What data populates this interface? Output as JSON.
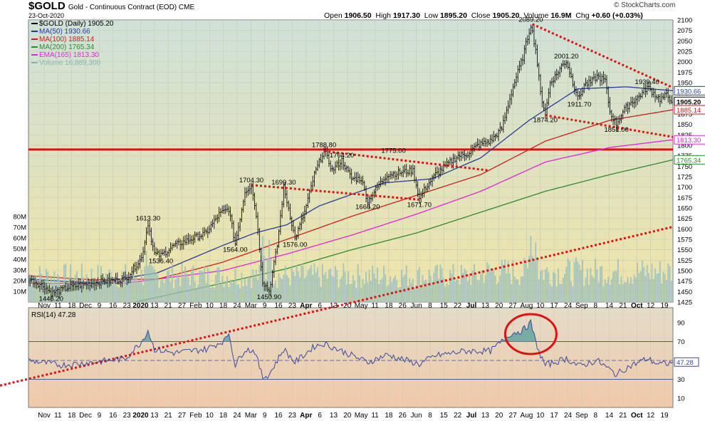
{
  "header": {
    "symbol": "$GOLD",
    "description": "Gold - Continuous Contract (EOD) CME",
    "date": "23-Oct-2020",
    "open_label": "Open",
    "open": "1906.50",
    "high_label": "High",
    "high": "1917.30",
    "low_label": "Low",
    "low": "1895.20",
    "close_label": "Close",
    "close": "1905.20",
    "volume_label": "Volume",
    "volume": "16.9M",
    "chg_label": "Chg",
    "chg": "+0.60 (+0.03%)",
    "brand": "© StockCharts.com"
  },
  "legend": [
    {
      "text": "$GOLD (Daily) 1905.20",
      "color": "#000000"
    },
    {
      "text": "MA(50) 1930.66",
      "color": "#2a3c9a"
    },
    {
      "text": "MA(100) 1885.14",
      "color": "#cc1f1f"
    },
    {
      "text": "MA(200) 1765.34",
      "color": "#2f8a2f"
    },
    {
      "text": "EMA(165) 1813.30",
      "color": "#e026d6"
    },
    {
      "text": "Volume 16,889,300",
      "color": "#8ab5b0"
    }
  ],
  "colors": {
    "price_bg": "#dfe8cc",
    "rsi_bg": "#ead7c2",
    "price_line": "#111111",
    "ma50": "#2a3c9a",
    "ma100": "#cc1f1f",
    "ma200": "#2f8a2f",
    "ema165": "#e026d6",
    "volume": "#9cbfbb",
    "trend": "#dd1111",
    "rsi_line": "#3a48a0",
    "rsi_fill": "#6aa6a0"
  },
  "chart_data": {
    "type": "line",
    "y_axis": {
      "min": 1425,
      "max": 2100,
      "ticks": [
        2100,
        2075,
        2050,
        2025,
        2000,
        1975,
        1950,
        1925,
        1900,
        1875,
        1850,
        1825,
        1800,
        1775,
        1750,
        1725,
        1700,
        1675,
        1650,
        1625,
        1600,
        1575,
        1550,
        1525,
        1500,
        1475,
        1450,
        1425
      ]
    },
    "volume_axis": {
      "max": 80,
      "ticks": [
        "80M",
        "70M",
        "60M",
        "50M",
        "40M",
        "30M",
        "20M",
        "10M"
      ],
      "tick_values": [
        80,
        70,
        60,
        50,
        40,
        30,
        20,
        10
      ]
    },
    "x_axis": {
      "labels": [
        "Nov",
        "11",
        "18",
        "Dec",
        "9",
        "16",
        "23",
        "2020",
        "13",
        "21",
        "27",
        "Feb",
        "10",
        "18",
        "24",
        "Mar",
        "9",
        "16",
        "23",
        "Apr",
        "6",
        "13",
        "20",
        "May",
        "11",
        "18",
        "26",
        "Jun",
        "8",
        "15",
        "22",
        "Jul",
        "13",
        "20",
        "27",
        "Aug",
        "10",
        "17",
        "24",
        "Sep",
        "8",
        "14",
        "21",
        "Oct",
        "12",
        "19"
      ],
      "bold": [
        "2020",
        "Apr",
        "Jul",
        "Oct"
      ]
    },
    "price": {
      "keypoints": [
        [
          0,
          1480
        ],
        [
          10,
          1462
        ],
        [
          14,
          1446.2
        ],
        [
          25,
          1460
        ],
        [
          38,
          1470
        ],
        [
          50,
          1476
        ],
        [
          60,
          1480
        ],
        [
          70,
          1530
        ],
        [
          74,
          1613.3
        ],
        [
          78,
          1540
        ],
        [
          82,
          1536.4
        ],
        [
          90,
          1560
        ],
        [
          100,
          1575
        ],
        [
          110,
          1590
        ],
        [
          118,
          1635
        ],
        [
          124,
          1648
        ],
        [
          128,
          1564
        ],
        [
          134,
          1690
        ],
        [
          138,
          1704.3
        ],
        [
          141,
          1635
        ],
        [
          145,
          1475
        ],
        [
          149,
          1450.9
        ],
        [
          154,
          1560
        ],
        [
          158,
          1699.3
        ],
        [
          161,
          1650
        ],
        [
          165,
          1576
        ],
        [
          171,
          1640
        ],
        [
          177,
          1730
        ],
        [
          183,
          1788.8
        ],
        [
          188,
          1740
        ],
        [
          194,
          1764.2
        ],
        [
          200,
          1720
        ],
        [
          206,
          1720
        ],
        [
          210,
          1666.2
        ],
        [
          216,
          1700
        ],
        [
          222,
          1730
        ],
        [
          230,
          1735
        ],
        [
          238,
          1740
        ],
        [
          242,
          1671.7
        ],
        [
          246,
          1700
        ],
        [
          252,
          1730
        ],
        [
          258,
          1750
        ],
        [
          266,
          1775
        ],
        [
          272,
          1780
        ],
        [
          278,
          1800
        ],
        [
          286,
          1810
        ],
        [
          293,
          1840
        ],
        [
          300,
          1940
        ],
        [
          306,
          2010
        ],
        [
          311,
          2089.2
        ],
        [
          314,
          2030
        ],
        [
          317,
          1925
        ],
        [
          320,
          1874.2
        ],
        [
          323,
          1950
        ],
        [
          327,
          1970
        ],
        [
          330,
          1990
        ],
        [
          333,
          2001.2
        ],
        [
          337,
          1950
        ],
        [
          341,
          1911.7
        ],
        [
          344,
          1945
        ],
        [
          348,
          1950
        ],
        [
          352,
          1965
        ],
        [
          357,
          1955
        ],
        [
          360,
          1880
        ],
        [
          364,
          1851
        ],
        [
          368,
          1880
        ],
        [
          372,
          1900
        ],
        [
          376,
          1910
        ],
        [
          380,
          1925
        ],
        [
          383,
          1939.4
        ],
        [
          387,
          1925
        ],
        [
          391,
          1910
        ],
        [
          395,
          1920
        ],
        [
          399,
          1905.2
        ]
      ],
      "annotations": [
        [
          311,
          2089.2,
          "2089.20",
          "above"
        ],
        [
          333,
          2001.2,
          "2001.20",
          "above"
        ],
        [
          383,
          1939.4,
          "1939.40",
          "above"
        ],
        [
          341,
          1911.7,
          "1911.70",
          "below"
        ],
        [
          320,
          1874.2,
          "1874.20",
          "below"
        ],
        [
          364,
          1851,
          "1851.00",
          "below"
        ],
        [
          183,
          1788.8,
          "1788.80",
          "above"
        ],
        [
          226,
          1775,
          "1775.00",
          "above"
        ],
        [
          194,
          1764.2,
          "1764.20",
          "above"
        ],
        [
          138,
          1704.3,
          "1704.30",
          "above"
        ],
        [
          158,
          1699.3,
          "1699.30",
          "above"
        ],
        [
          210,
          1666.2,
          "1666.20",
          "below"
        ],
        [
          242,
          1671.7,
          "1671.70",
          "below"
        ],
        [
          74,
          1613.3,
          "1613.30",
          "above"
        ],
        [
          82,
          1536.4,
          "1536.40",
          "below"
        ],
        [
          128,
          1564,
          "1564.00",
          "below"
        ],
        [
          165,
          1576,
          "1576.00",
          "below"
        ],
        [
          14,
          1446.2,
          "1446.20",
          "below"
        ],
        [
          149,
          1450.9,
          "1450.90",
          "below"
        ]
      ],
      "right_labels": [
        [
          1930.66,
          "1930.66",
          "#2a3c9a"
        ],
        [
          1905.2,
          "1905.20",
          "#000000"
        ],
        [
          1885.14,
          "1885.14",
          "#cc1f1f"
        ],
        [
          1813.3,
          "1813.30",
          "#e026d6"
        ],
        [
          1765.34,
          "1765.34",
          "#2f8a2f"
        ]
      ]
    },
    "ma50": [
      [
        0,
        1480
      ],
      [
        40,
        1470
      ],
      [
        80,
        1495
      ],
      [
        120,
        1560
      ],
      [
        140,
        1590
      ],
      [
        160,
        1610
      ],
      [
        180,
        1655
      ],
      [
        220,
        1710
      ],
      [
        250,
        1720
      ],
      [
        280,
        1770
      ],
      [
        310,
        1860
      ],
      [
        340,
        1935
      ],
      [
        370,
        1940
      ],
      [
        399,
        1930.66
      ]
    ],
    "ma100": [
      [
        0,
        1488
      ],
      [
        40,
        1478
      ],
      [
        80,
        1480
      ],
      [
        120,
        1520
      ],
      [
        160,
        1575
      ],
      [
        200,
        1630
      ],
      [
        240,
        1680
      ],
      [
        280,
        1730
      ],
      [
        320,
        1810
      ],
      [
        360,
        1860
      ],
      [
        399,
        1885.14
      ]
    ],
    "ema165": [
      [
        0,
        1470
      ],
      [
        60,
        1470
      ],
      [
        120,
        1500
      ],
      [
        160,
        1540
      ],
      [
        200,
        1585
      ],
      [
        240,
        1635
      ],
      [
        280,
        1690
      ],
      [
        320,
        1760
      ],
      [
        360,
        1795
      ],
      [
        399,
        1813.3
      ]
    ],
    "ma200": [
      [
        0,
        1380
      ],
      [
        60,
        1420
      ],
      [
        120,
        1470
      ],
      [
        160,
        1505
      ],
      [
        200,
        1550
      ],
      [
        240,
        1590
      ],
      [
        280,
        1640
      ],
      [
        320,
        1690
      ],
      [
        360,
        1730
      ],
      [
        399,
        1765.34
      ]
    ],
    "volume": {
      "base": 28,
      "seed": 7,
      "spikes": [
        [
          73,
          48
        ],
        [
          145,
          62
        ],
        [
          149,
          58
        ],
        [
          311,
          62
        ],
        [
          314,
          56
        ]
      ]
    },
    "horizontal_line": {
      "value": 1790,
      "label": "support/resistance"
    },
    "trendlines": [
      {
        "points": [
          [
            312,
            2090
          ],
          [
            399,
            1938
          ]
        ],
        "style": "dotted"
      },
      {
        "points": [
          [
            320,
            1872
          ],
          [
            399,
            1820
          ]
        ],
        "style": "dotted"
      },
      {
        "points": [
          [
            183,
            1786
          ],
          [
            285,
            1740
          ]
        ],
        "style": "dotted"
      },
      {
        "points": [
          [
            138,
            1705
          ],
          [
            242,
            1670
          ]
        ],
        "style": "dotted"
      },
      {
        "points": [
          [
            -40,
            1225
          ],
          [
            399,
            1605
          ]
        ],
        "style": "dotted"
      }
    ],
    "rsi": {
      "label": "RSI(14) 47.28",
      "last": "47.28",
      "ticks": [
        90,
        70,
        50,
        30,
        10
      ],
      "overbought": 70,
      "oversold": 30,
      "mid": 50,
      "keypoints": [
        [
          0,
          50
        ],
        [
          20,
          45
        ],
        [
          40,
          48
        ],
        [
          60,
          52
        ],
        [
          70,
          70
        ],
        [
          74,
          82
        ],
        [
          78,
          62
        ],
        [
          90,
          58
        ],
        [
          110,
          62
        ],
        [
          122,
          72
        ],
        [
          124,
          80
        ],
        [
          128,
          45
        ],
        [
          134,
          62
        ],
        [
          140,
          60
        ],
        [
          145,
          32
        ],
        [
          149,
          35
        ],
        [
          158,
          62
        ],
        [
          165,
          48
        ],
        [
          177,
          65
        ],
        [
          183,
          68
        ],
        [
          194,
          60
        ],
        [
          210,
          48
        ],
        [
          222,
          56
        ],
        [
          242,
          46
        ],
        [
          252,
          55
        ],
        [
          270,
          60
        ],
        [
          286,
          60
        ],
        [
          293,
          70
        ],
        [
          298,
          78
        ],
        [
          306,
          82
        ],
        [
          311,
          90
        ],
        [
          314,
          70
        ],
        [
          317,
          55
        ],
        [
          320,
          45
        ],
        [
          333,
          52
        ],
        [
          341,
          44
        ],
        [
          352,
          50
        ],
        [
          360,
          40
        ],
        [
          364,
          35
        ],
        [
          370,
          42
        ],
        [
          383,
          52
        ],
        [
          390,
          46
        ],
        [
          399,
          47.28
        ]
      ],
      "circle": {
        "x": 311,
        "y": 78,
        "label": "overbought highlight"
      }
    }
  }
}
